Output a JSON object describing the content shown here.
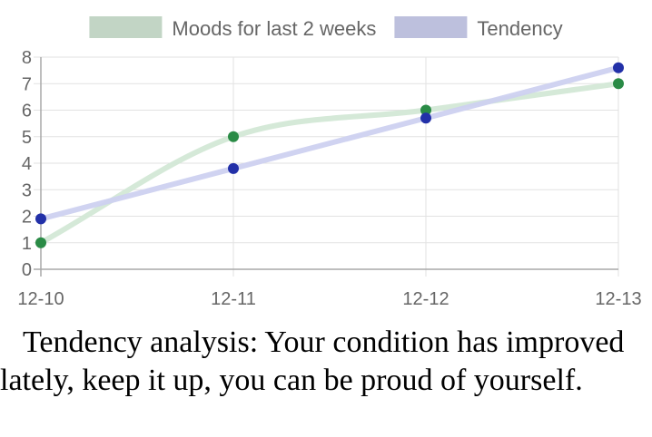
{
  "chart_data": {
    "type": "line",
    "categories": [
      "12-10",
      "12-11",
      "12-12",
      "12-13"
    ],
    "ylim": [
      0,
      8
    ],
    "yticks": [
      0,
      1,
      2,
      3,
      4,
      5,
      6,
      7,
      8
    ],
    "grid": true,
    "legend_position": "top",
    "series": [
      {
        "name": "Moods for last 2 weeks",
        "values": [
          1,
          5,
          6,
          7
        ],
        "line_color": "#d3e8d6",
        "point_color": "#2a8b46",
        "smooth": true
      },
      {
        "name": "Tendency",
        "values": [
          1.9,
          3.8,
          5.7,
          7.6
        ],
        "line_color": "#cdd1f0",
        "point_color": "#2230a8",
        "smooth": false
      }
    ]
  },
  "analysis": {
    "text": "Tendency analysis: Your condition has improved lately, keep it up, you can be proud of yourself."
  }
}
